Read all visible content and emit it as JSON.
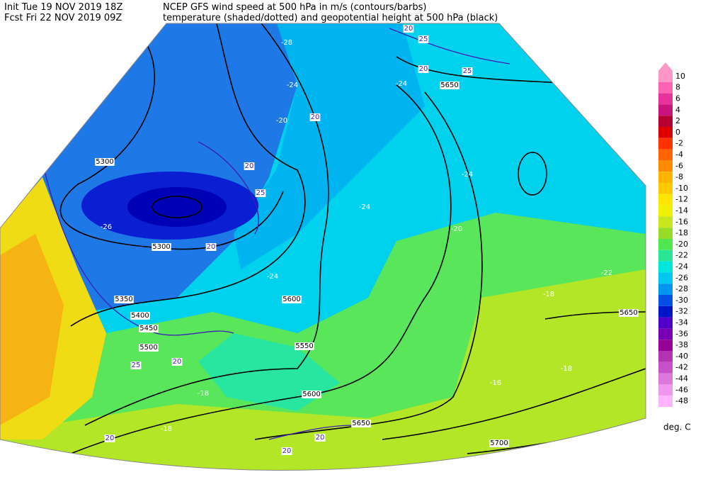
{
  "header": {
    "init": "Init  Tue 19 NOV 2019 18Z",
    "fcst": "Fcst Fri 22 NOV 2019 09Z",
    "title1": "NCEP GFS wind speed at 500 hPa in m/s (contours/barbs)",
    "title2": "temperature (shaded/dotted) and geopotential height at 500 hPa (black)"
  },
  "colorbar": {
    "ticks": [
      10,
      8,
      6,
      4,
      2,
      0,
      -2,
      -4,
      -6,
      -8,
      -10,
      -12,
      -14,
      -16,
      -18,
      -20,
      -22,
      -24,
      -26,
      -28,
      -30,
      -32,
      -34,
      -36,
      -38,
      -40,
      -42,
      -44,
      -46,
      -48
    ],
    "colors": [
      "#ff96c8",
      "#ff64b4",
      "#e6329b",
      "#c8147d",
      "#b40032",
      "#dc0000",
      "#ff3200",
      "#ff6400",
      "#ff8c00",
      "#ffb400",
      "#ffc800",
      "#ffe600",
      "#f0f000",
      "#c8e61e",
      "#96dc28",
      "#50e650",
      "#28e696",
      "#00e6dc",
      "#00c8f0",
      "#0096f0",
      "#0050e6",
      "#0014c8",
      "#5000c8",
      "#7800b4",
      "#960096",
      "#b432b4",
      "#c850c8",
      "#dc78dc",
      "#f096f0",
      "#ffb4ff"
    ],
    "unit": "deg. C"
  },
  "height_labels": [
    5300,
    5300,
    5350,
    5400,
    5450,
    5500,
    5550,
    5600,
    5600,
    5650,
    5650,
    5650,
    5700
  ],
  "temperature_labels": [
    -28,
    -24,
    -20,
    -24,
    -24,
    -20,
    -24,
    -18,
    -18,
    -16,
    -18,
    -18,
    -22,
    -26,
    -24
  ],
  "wind_labels": [
    20,
    25,
    20,
    25,
    20,
    20,
    25,
    20,
    20,
    25,
    20,
    20,
    20
  ]
}
